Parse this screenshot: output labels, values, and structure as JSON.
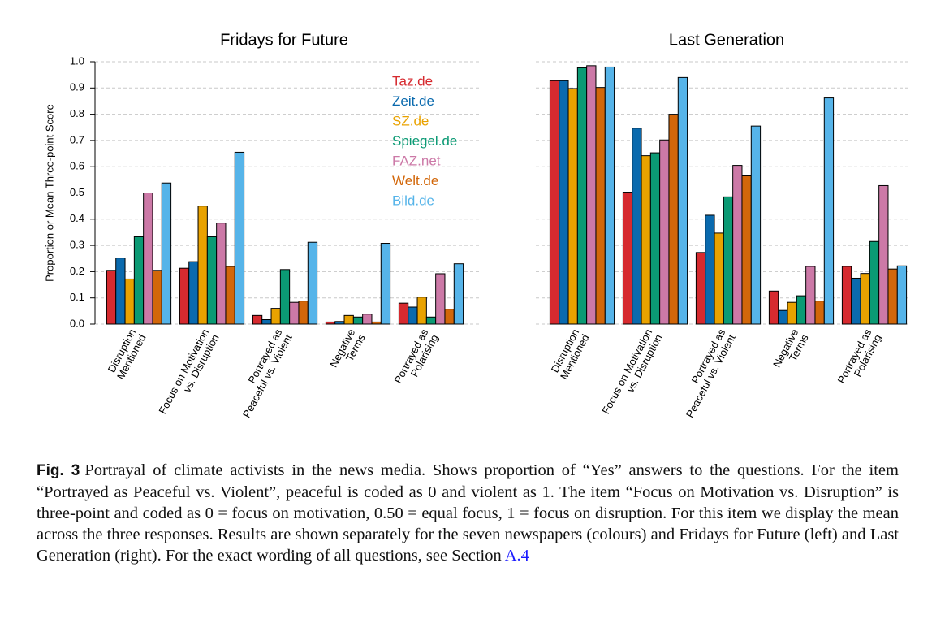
{
  "chart_data": [
    {
      "type": "bar",
      "title": "Fridays for Future",
      "y_label": "Proportion or Mean Three-point Score",
      "categories": [
        [
          "Disruption",
          "Mentioned"
        ],
        [
          "Focus on Motivation",
          "vs. Disruption"
        ],
        [
          "Portrayed as",
          "Peaceful vs. Violent"
        ],
        [
          "Negative",
          "Terms"
        ],
        [
          "Portrayed as",
          "Polarising"
        ]
      ],
      "series": [
        {
          "name": "Taz.de",
          "color": "#d62a2f",
          "values": [
            0.205,
            0.213,
            0.033,
            0.008,
            0.08
          ]
        },
        {
          "name": "Zeit.de",
          "color": "#0a6aae",
          "values": [
            0.252,
            0.238,
            0.017,
            0.01,
            0.065
          ]
        },
        {
          "name": "SZ.de",
          "color": "#e9a200",
          "values": [
            0.172,
            0.45,
            0.06,
            0.033,
            0.103
          ]
        },
        {
          "name": "Spiegel.de",
          "color": "#0b9a74",
          "values": [
            0.333,
            0.333,
            0.208,
            0.027,
            0.027
          ]
        },
        {
          "name": "FAZ.net",
          "color": "#cc79a7",
          "values": [
            0.5,
            0.385,
            0.083,
            0.038,
            0.192
          ]
        },
        {
          "name": "Welt.de",
          "color": "#d2670a",
          "values": [
            0.205,
            0.22,
            0.088,
            0.008,
            0.057
          ]
        },
        {
          "name": "Bild.de",
          "color": "#56b4e9",
          "values": [
            0.538,
            0.655,
            0.312,
            0.308,
            0.23
          ]
        }
      ],
      "ylim": [
        0,
        1
      ],
      "yticks": [
        {
          "value": 0,
          "label": "0.0"
        },
        0.1,
        0.2,
        0.3,
        0.4,
        0.5,
        0.6,
        0.7,
        0.8,
        0.9,
        {
          "value": 1,
          "label": "1.0"
        }
      ],
      "ytick_labels": true,
      "grid": true,
      "legend": "top-right"
    },
    {
      "type": "bar",
      "title": "Last Generation",
      "categories": [
        [
          "Disruption",
          "Mentioned"
        ],
        [
          "Focus on Motivation",
          "vs. Disruption"
        ],
        [
          "Portrayed as",
          "Peaceful vs. Violent"
        ],
        [
          "Negative",
          "Terms"
        ],
        [
          "Portrayed as",
          "Polarising"
        ]
      ],
      "series": [
        {
          "color": "#d62a2f",
          "values": [
            0.928,
            0.503,
            0.273,
            0.126,
            0.22
          ]
        },
        {
          "color": "#0a6aae",
          "values": [
            0.928,
            0.747,
            0.415,
            0.052,
            0.175
          ]
        },
        {
          "color": "#e9a200",
          "values": [
            0.898,
            0.642,
            0.347,
            0.083,
            0.193
          ]
        },
        {
          "color": "#0b9a74",
          "values": [
            0.977,
            0.653,
            0.485,
            0.108,
            0.315
          ]
        },
        {
          "color": "#cc79a7",
          "values": [
            0.985,
            0.702,
            0.605,
            0.22,
            0.528
          ]
        },
        {
          "color": "#d2670a",
          "values": [
            0.902,
            0.8,
            0.565,
            0.088,
            0.21
          ]
        },
        {
          "color": "#56b4e9",
          "values": [
            0.98,
            0.94,
            0.755,
            0.862,
            0.222
          ]
        }
      ],
      "ylim": [
        0,
        1
      ],
      "yticks": [
        0,
        0.1,
        0.2,
        0.3,
        0.4,
        0.5,
        0.6,
        0.7,
        0.8,
        0.9,
        1
      ],
      "ytick_labels": false,
      "grid": true
    }
  ],
  "caption": {
    "label": "Fig. 3",
    "text": "Portrayal of climate activists in the news media. Shows proportion of “Yes” answers to the questions. For the item “Portrayed as Peaceful vs. Violent”, peaceful is coded as 0 and violent as 1. The item “Focus on Motivation vs. Disruption” is three-point and coded as 0 = focus on motivation, 0.50 = equal focus, 1 = focus on disruption. For this item we display the mean across the three responses. Results are shown separately for the seven newspapers (colours) and Fridays for Future (left) and Last Generation (right). For the exact wording of all questions, see Section ",
    "link": "A.4"
  }
}
